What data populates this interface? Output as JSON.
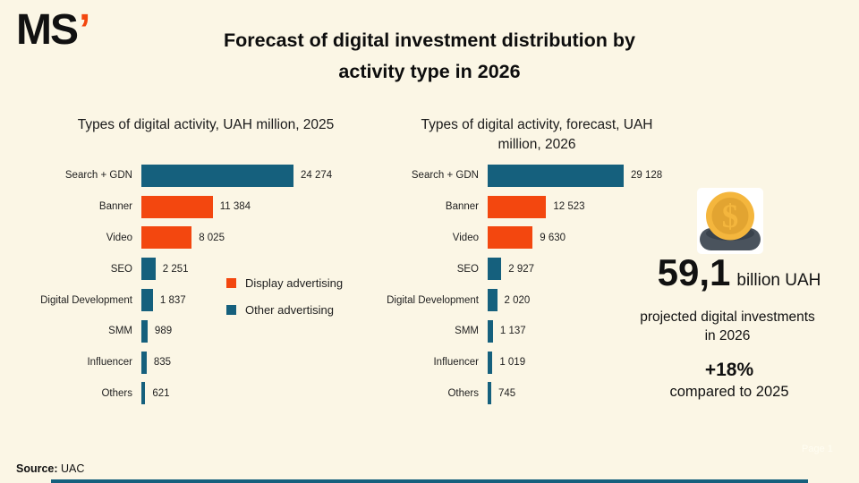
{
  "page": {
    "background_color": "#FBF6E5",
    "logo_text": "MS",
    "logo_apostrophe": "’",
    "title_line1": "Forecast of digital investment distribution by",
    "title_line2": "activity type in 2026",
    "source_label": "Source:",
    "source_value": "UAC",
    "page_marker": "Page 1"
  },
  "colors": {
    "display_advertising": "#F3470F",
    "other_advertising": "#15607D",
    "logo_accent": "#F3470F",
    "coin_gold": "#F4B63D",
    "coin_gold_dark": "#E2A431",
    "coin_slot": "#4A535D",
    "coin_slot_dark": "#39424C"
  },
  "legend": {
    "items": [
      {
        "label": "Display advertising",
        "color_key": "display_advertising"
      },
      {
        "label": "Other advertising",
        "color_key": "other_advertising"
      }
    ]
  },
  "chart_data": [
    {
      "type": "bar",
      "orientation": "horizontal",
      "title": "Types of digital activity, UAH million, 2025",
      "categories": [
        "Search + GDN",
        "Banner",
        "Video",
        "SEO",
        "Digital Development",
        "SMM",
        "Influencer",
        "Others"
      ],
      "values": [
        24274,
        11384,
        8025,
        2251,
        1837,
        989,
        835,
        621
      ],
      "value_labels": [
        "24 274",
        "11 384",
        "8 025",
        "2 251",
        "1 837",
        "989",
        "835",
        "621"
      ],
      "series_key": [
        "other_advertising",
        "display_advertising",
        "display_advertising",
        "other_advertising",
        "other_advertising",
        "other_advertising",
        "other_advertising",
        "other_advertising"
      ],
      "xlim": [
        0,
        24274
      ],
      "grid": false,
      "legend_position": "right-of-chart",
      "value_labels_position": "end-of-bar"
    },
    {
      "type": "bar",
      "orientation": "horizontal",
      "title": "Types of digital activity, forecast, UAH million, 2026",
      "categories": [
        "Search + GDN",
        "Banner",
        "Video",
        "SEO",
        "Digital Development",
        "SMM",
        "Influencer",
        "Others"
      ],
      "values": [
        29128,
        12523,
        9630,
        2927,
        2020,
        1137,
        1019,
        745
      ],
      "value_labels": [
        "29 128",
        "12 523",
        "9 630",
        "2 927",
        "2 020",
        "1 137",
        "1 019",
        "745"
      ],
      "series_key": [
        "other_advertising",
        "display_advertising",
        "display_advertising",
        "other_advertising",
        "other_advertising",
        "other_advertising",
        "other_advertising",
        "other_advertising"
      ],
      "xlim": [
        0,
        29128
      ],
      "grid": false,
      "value_labels_position": "end-of-bar"
    }
  ],
  "summary": {
    "big_number": "59,1",
    "big_number_unit": "billion UAH",
    "caption_line1": "projected digital investments",
    "caption_line2": "in 2026",
    "delta": "+18%",
    "delta_caption": "compared to 2025"
  }
}
